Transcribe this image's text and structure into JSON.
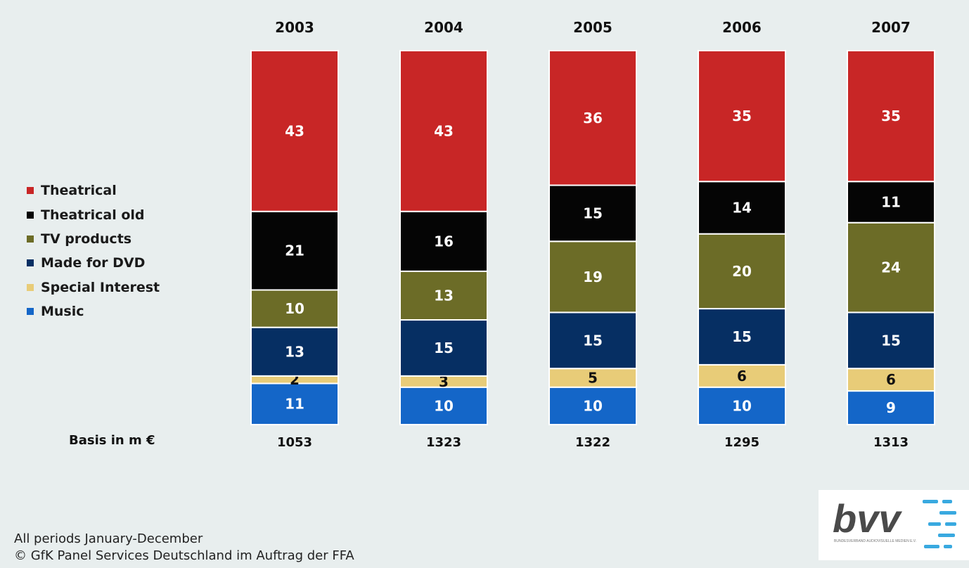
{
  "chart_data": {
    "type": "bar",
    "stacked": true,
    "percent_stacked": true,
    "categories": [
      "2003",
      "2004",
      "2005",
      "2006",
      "2007"
    ],
    "series": [
      {
        "name": "Music",
        "color": "#1466c8",
        "label_color": "#ffffff",
        "values": [
          11,
          10,
          10,
          10,
          9
        ]
      },
      {
        "name": "Special Interest",
        "color": "#e8cc78",
        "label_color": "#111111",
        "values": [
          2,
          3,
          5,
          6,
          6
        ]
      },
      {
        "name": "Made for DVD",
        "color": "#062f63",
        "label_color": "#ffffff",
        "values": [
          13,
          15,
          15,
          15,
          15
        ]
      },
      {
        "name": "TV products",
        "color": "#6c6c27",
        "label_color": "#ffffff",
        "values": [
          10,
          13,
          19,
          20,
          24
        ]
      },
      {
        "name": "Theatrical old",
        "color": "#050505",
        "label_color": "#ffffff",
        "values": [
          21,
          16,
          15,
          14,
          11
        ]
      },
      {
        "name": "Theatrical",
        "color": "#c82626",
        "label_color": "#ffffff",
        "values": [
          43,
          43,
          36,
          35,
          35
        ]
      }
    ],
    "legend_order": [
      "Theatrical",
      "Theatrical old",
      "TV products",
      "Made for DVD",
      "Special Interest",
      "Music"
    ],
    "legend_position": "left",
    "basis": {
      "label": "Basis in m €",
      "values": [
        "1053",
        "1323",
        "1322",
        "1295",
        "1313"
      ]
    },
    "xlabel": "",
    "ylabel": "",
    "ylim": [
      0,
      100
    ],
    "grid": false
  },
  "footnotes": {
    "line1": "All periods January-December",
    "line2": "© GfK Panel Services Deutschland im Auftrag der FFA"
  },
  "logo": {
    "text": "bvv",
    "subtext": "BUNDESVERBAND AUDIOVISUELLE MEDIEN E.V.",
    "accent_color": "#39a9e0",
    "text_color": "#4a4a4a"
  }
}
